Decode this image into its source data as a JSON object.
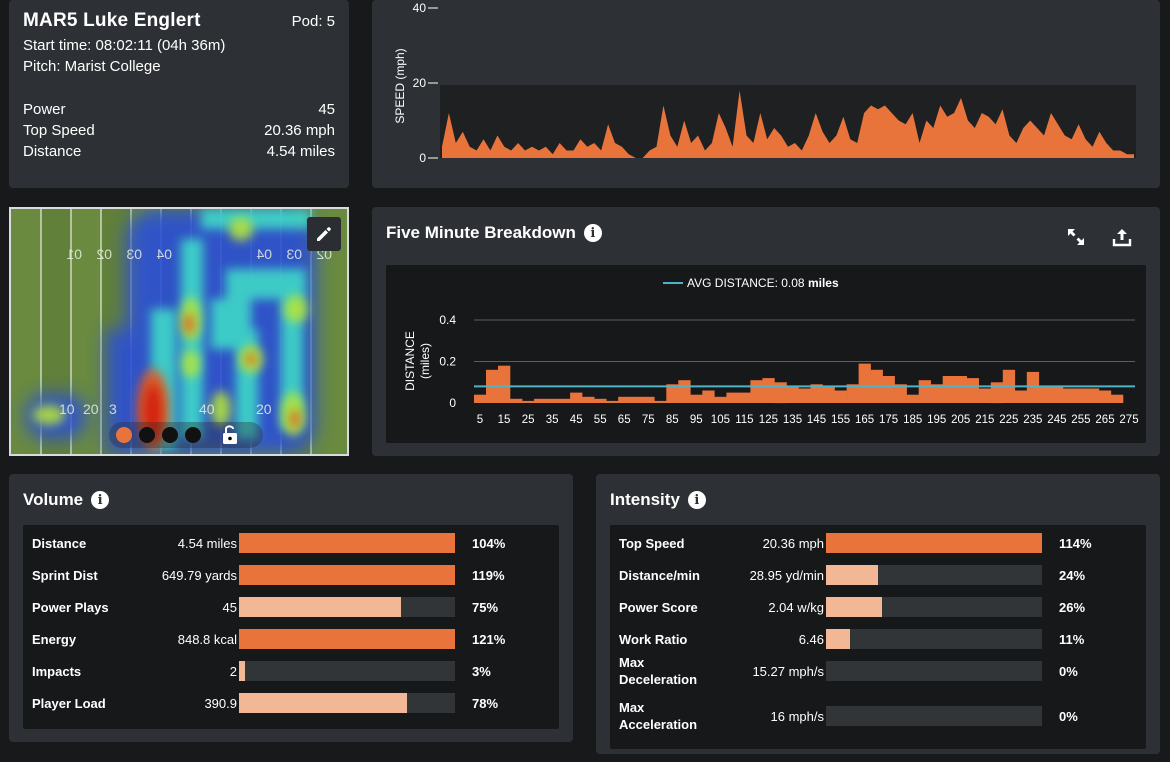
{
  "player": {
    "name": "MAR5 Luke Englert",
    "pod": "Pod: 5",
    "start_time": "Start time: 08:02:11 (04h 36m)",
    "pitch": "Pitch: Marist College",
    "stats": [
      {
        "label": "Power",
        "value": "45"
      },
      {
        "label": "Top Speed",
        "value": "20.36 mph"
      },
      {
        "label": "Distance",
        "value": "4.54 miles"
      }
    ]
  },
  "speed_chart": {
    "ylabel": "SPEED (mph)",
    "ticks": [
      "0",
      "20",
      "40"
    ]
  },
  "heatmap": {
    "edit_icon": "pencil-icon",
    "lock_icon": "unlock-icon",
    "dot_colors": [
      "#e8743c",
      "#111111",
      "#111111",
      "#111111"
    ]
  },
  "five_minute": {
    "title": "Five Minute Breakdown",
    "legend_label": "AVG DISTANCE: 0.08 ",
    "legend_unit": "miles",
    "ylabel_1": "DISTANCE",
    "ylabel_2": "(miles)",
    "expand_icon": "expand-icon",
    "export_icon": "export-icon"
  },
  "volume": {
    "title": "Volume",
    "rows": [
      {
        "label": "Distance",
        "value": "4.54 miles",
        "pct": "104%",
        "fill": 1.0,
        "color": "#e8743c"
      },
      {
        "label": "Sprint Dist",
        "value": "649.79 yards",
        "pct": "119%",
        "fill": 1.0,
        "color": "#e8743c"
      },
      {
        "label": "Power Plays",
        "value": "45",
        "pct": "75%",
        "fill": 0.75,
        "color": "#f2b896"
      },
      {
        "label": "Energy",
        "value": "848.8 kcal",
        "pct": "121%",
        "fill": 1.0,
        "color": "#e8743c"
      },
      {
        "label": "Impacts",
        "value": "2",
        "pct": "3%",
        "fill": 0.03,
        "color": "#f2b896"
      },
      {
        "label": "Player Load",
        "value": "390.9",
        "pct": "78%",
        "fill": 0.78,
        "color": "#f2b896"
      }
    ]
  },
  "intensity": {
    "title": "Intensity",
    "rows": [
      {
        "label": "Top Speed",
        "value": "20.36 mph",
        "pct": "114%",
        "fill": 1.0,
        "color": "#e8743c"
      },
      {
        "label": "Distance/min",
        "value": "28.95 yd/min",
        "pct": "24%",
        "fill": 0.24,
        "color": "#f2b896"
      },
      {
        "label": "Power Score",
        "value": "2.04 w/kg",
        "pct": "26%",
        "fill": 0.26,
        "color": "#f2b896"
      },
      {
        "label": "Work Ratio",
        "value": "6.46",
        "pct": "11%",
        "fill": 0.11,
        "color": "#f2b896"
      },
      {
        "label": "Max\nDeceleration",
        "value": "15.27 mph/s",
        "pct": "0%",
        "fill": 0,
        "color": "#f2b896"
      },
      {
        "label": "Max\nAcceleration",
        "value": "16 mph/s",
        "pct": "0%",
        "fill": 0,
        "color": "#f2b896"
      }
    ]
  },
  "chart_data": [
    {
      "type": "area",
      "ylabel": "SPEED (mph)",
      "ylim": [
        0,
        40
      ],
      "y_ticks": [
        0,
        20,
        40
      ],
      "x_range": [
        0,
        100
      ],
      "x": [
        0,
        1,
        2,
        3,
        4,
        5,
        6,
        7,
        8,
        9,
        10,
        11,
        12,
        13,
        14,
        15,
        16,
        17,
        18,
        19,
        20,
        21,
        22,
        23,
        24,
        25,
        26,
        27,
        28,
        29,
        30,
        31,
        32,
        33,
        34,
        35,
        36,
        37,
        38,
        39,
        40,
        41,
        42,
        43,
        44,
        45,
        46,
        47,
        48,
        49,
        50,
        51,
        52,
        53,
        54,
        55,
        56,
        57,
        58,
        59,
        60,
        61,
        62,
        63,
        64,
        65,
        66,
        67,
        68,
        69,
        70,
        71,
        72,
        73,
        74,
        75,
        76,
        77,
        78,
        79,
        80,
        81,
        82,
        83,
        84,
        85,
        86,
        87,
        88,
        89,
        90,
        91,
        92,
        93,
        94,
        95,
        96,
        97,
        98,
        99,
        100
      ],
      "values": [
        3,
        12,
        4,
        7,
        3,
        2,
        5,
        2,
        6,
        3,
        2,
        4,
        2,
        3,
        2,
        3,
        1,
        4,
        2,
        2,
        5,
        3,
        4,
        2,
        9,
        4,
        3,
        1,
        0,
        0,
        2,
        3,
        14,
        6,
        3,
        10,
        4,
        6,
        2,
        4,
        12,
        8,
        3,
        18,
        6,
        4,
        12,
        5,
        8,
        6,
        3,
        4,
        2,
        6,
        12,
        7,
        4,
        6,
        11,
        5,
        4,
        12,
        14,
        13,
        14,
        12,
        10,
        9,
        12,
        4,
        10,
        8,
        14,
        11,
        12,
        16,
        10,
        8,
        12,
        11,
        9,
        13,
        6,
        4,
        8,
        10,
        8,
        6,
        12,
        9,
        6,
        5,
        9,
        5,
        3,
        7,
        4,
        2,
        2,
        1,
        1
      ],
      "grid": false,
      "color": "#e8743c"
    },
    {
      "type": "bar",
      "title": "Five Minute Breakdown",
      "ylabel": "DISTANCE (miles)",
      "ylim": [
        0,
        0.4
      ],
      "y_ticks": [
        0,
        0.2,
        0.4
      ],
      "categories": [
        "5",
        "10",
        "15",
        "20",
        "25",
        "30",
        "35",
        "40",
        "45",
        "50",
        "55",
        "60",
        "65",
        "70",
        "75",
        "80",
        "85",
        "90",
        "95",
        "100",
        "105",
        "110",
        "115",
        "120",
        "125",
        "130",
        "135",
        "140",
        "145",
        "150",
        "155",
        "160",
        "165",
        "170",
        "175",
        "180",
        "185",
        "190",
        "195",
        "200",
        "205",
        "210",
        "215",
        "220",
        "225",
        "230",
        "235",
        "240",
        "245",
        "250",
        "255",
        "260",
        "265",
        "270",
        "275"
      ],
      "x_tick_labels": [
        "5",
        "15",
        "25",
        "35",
        "45",
        "55",
        "65",
        "75",
        "85",
        "95",
        "105",
        "115",
        "125",
        "135",
        "145",
        "155",
        "165",
        "175",
        "185",
        "195",
        "205",
        "215",
        "225",
        "235",
        "245",
        "255",
        "265",
        "275"
      ],
      "values": [
        0.04,
        0.16,
        0.18,
        0.02,
        0.01,
        0.02,
        0.02,
        0.02,
        0.05,
        0.03,
        0.02,
        0.01,
        0.03,
        0.03,
        0.03,
        0.01,
        0.09,
        0.11,
        0.04,
        0.06,
        0.03,
        0.05,
        0.05,
        0.11,
        0.12,
        0.1,
        0.08,
        0.07,
        0.09,
        0.08,
        0.06,
        0.09,
        0.19,
        0.16,
        0.13,
        0.09,
        0.04,
        0.11,
        0.09,
        0.13,
        0.13,
        0.12,
        0.07,
        0.1,
        0.16,
        0.06,
        0.15,
        0.08,
        0.08,
        0.07,
        0.07,
        0.07,
        0.06,
        0.04,
        0.0
      ],
      "avg_line": 0.08,
      "legend": "top-center",
      "grid": true,
      "color": "#e8743c",
      "avg_color": "#4fb3c8"
    }
  ]
}
